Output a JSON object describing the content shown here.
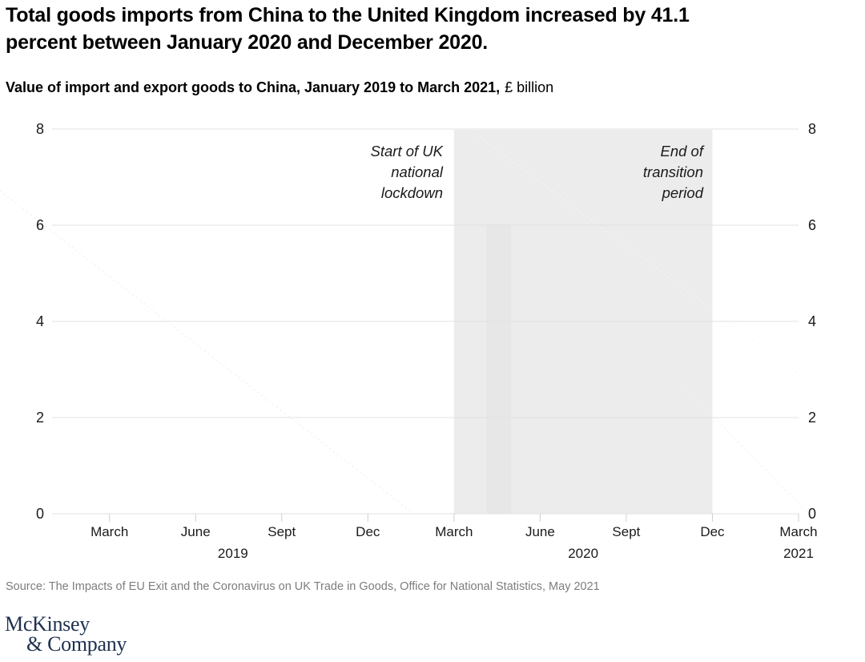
{
  "page": {
    "title_lines": [
      "Total goods imports from China to the United Kingdom increased by 41.1",
      "percent between January 2020 and December 2020."
    ],
    "subtitle_bold": "Value of import and export goods to China, January 2019 to March 2021,",
    "subtitle_unit": "£ billion",
    "source": "Source: The Impacts of EU Exit and the Coronavirus on UK Trade in Goods, Office for National Statistics, May 2021",
    "logo_line1": "McKinsey",
    "logo_line2": "& Company"
  },
  "colors": {
    "band": "#ececec",
    "ghost_bar": "#e7e7e7",
    "gridline": "#e1e1e1",
    "tick": "#cfcfcf",
    "axis_text": "#1a1a1a",
    "source_text": "#7d7d7d",
    "logo_navy": "#1e3150",
    "ghost_line_left": "#ededed",
    "ghost_line_band": "#f7f7f7",
    "ghost_line_right": "#f0f0f0"
  },
  "chart_data": {
    "type": "line",
    "title": "Total goods imports from China to the United Kingdom increased by 41.1 percent between January 2020 and December 2020.",
    "subtitle": "Value of import and export goods to China, January 2019 to March 2021, £ billion",
    "unit": "£ billion",
    "ylim": [
      0,
      8
    ],
    "y_ticks": [
      8,
      6,
      4,
      2,
      0
    ],
    "y_axis_sides": [
      "left",
      "right"
    ],
    "grid": "horizontal",
    "legend": "none",
    "x_range_months": 26,
    "x_ticks": [
      {
        "label": "March",
        "month_index": 2
      },
      {
        "label": "June",
        "month_index": 5
      },
      {
        "label": "Sept",
        "month_index": 8
      },
      {
        "label": "Dec",
        "month_index": 11
      },
      {
        "label": "March",
        "month_index": 14
      },
      {
        "label": "June",
        "month_index": 17
      },
      {
        "label": "Sept",
        "month_index": 20
      },
      {
        "label": "Dec",
        "month_index": 23
      },
      {
        "label": "March",
        "month_index": 26
      }
    ],
    "year_labels": [
      {
        "label": "2019",
        "month_index": 6.3
      },
      {
        "label": "2020",
        "month_index": 18.5
      },
      {
        "label": "2021",
        "month_index": 26
      }
    ],
    "shaded_region": {
      "from_label": "March 2020",
      "to_label": "Dec 2020",
      "from_month_index": 14,
      "to_month_index": 23
    },
    "annotations": [
      {
        "name": "lockdown",
        "lines": [
          "Start of UK",
          "national",
          "lockdown"
        ],
        "anchor": "left edge of shaded region"
      },
      {
        "name": "transition",
        "lines": [
          "End of",
          "transition",
          "period"
        ],
        "anchor": "right edge of shaded region"
      }
    ],
    "series": []
  }
}
